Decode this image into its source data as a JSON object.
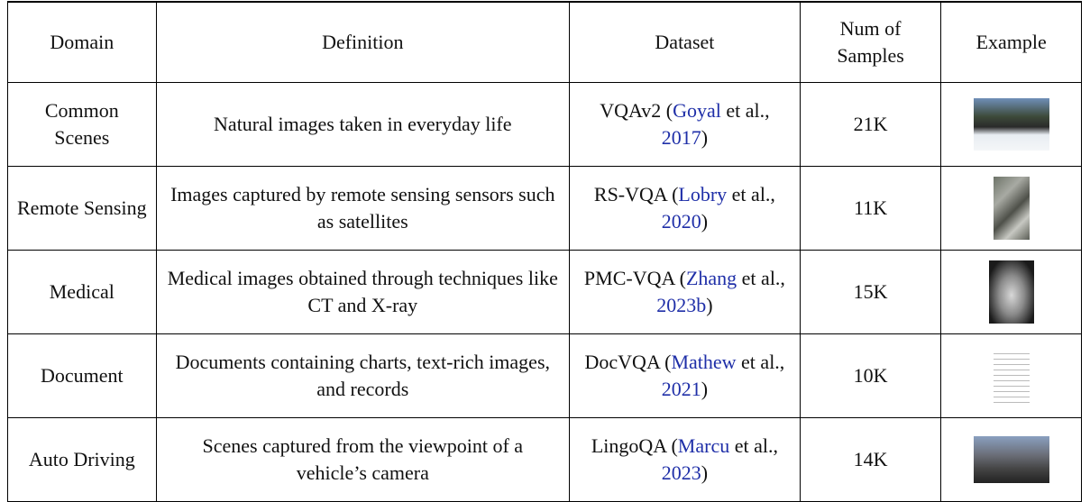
{
  "table": {
    "header": [
      "Domain",
      "Definition",
      "Dataset",
      "Num of Samples",
      "Example"
    ],
    "rows": [
      [
        "Common Scenes",
        "Natural images taken in everyday life",
        [
          "VQAv2 (",
          "Goyal",
          " et al., ",
          "2017",
          ")"
        ],
        "21K"
      ],
      [
        "Remote Sensing",
        "Images captured by remote sensing sensors such as satellites",
        [
          "RS-VQA (",
          "Lobry",
          " et al., ",
          "2020",
          ")"
        ],
        "11K"
      ],
      [
        "Medical",
        "Medical images obtained through techniques like CT and X-ray",
        [
          "PMC-VQA (",
          "Zhang",
          " et al., ",
          "2023b",
          ")"
        ],
        "15K"
      ],
      [
        "Document",
        "Documents containing charts, text-rich images, and records",
        [
          "DocVQA (",
          "Mathew",
          " et al., ",
          "2021",
          ")"
        ],
        "10K"
      ],
      [
        "Auto Driving",
        "Scenes captured from the viewpoint of a vehicle’s camera",
        [
          "LingoQA (",
          "Marcu",
          " et al., ",
          "2023",
          ")"
        ],
        "14K"
      ]
    ]
  }
}
